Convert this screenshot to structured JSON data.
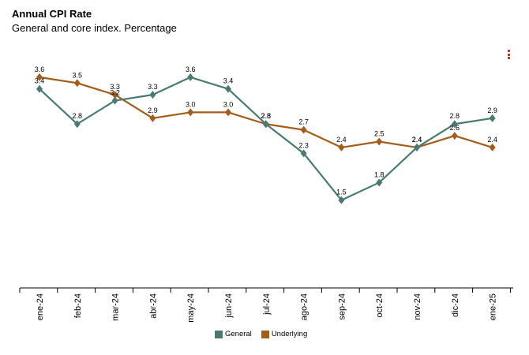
{
  "chart_title": "Annual CPI Rate",
  "chart_subtitle": "General and core index. Percentage",
  "colors": {
    "general": "#4a7a74",
    "underlying": "#a45c1a"
  },
  "icons": {
    "menu": "menu-dots-icon"
  },
  "chart_data": {
    "type": "line",
    "title": "Annual CPI Rate",
    "subtitle": "General and core index. Percentage",
    "categories": [
      "ene-24",
      "feb-24",
      "mar-24",
      "abr-24",
      "may-24",
      "jun-24",
      "jul-24",
      "ago-24",
      "sep-24",
      "oct-24",
      "nov-24",
      "dic-24",
      "ene-25"
    ],
    "series": [
      {
        "name": "General",
        "color": "#4a7a74",
        "values": [
          3.4,
          2.8,
          3.2,
          3.3,
          3.6,
          3.4,
          2.8,
          2.3,
          1.5,
          1.8,
          2.4,
          2.8,
          2.9
        ]
      },
      {
        "name": "Underlying",
        "color": "#a45c1a",
        "values": [
          3.6,
          3.5,
          3.3,
          2.9,
          3.0,
          3.0,
          2.8,
          2.7,
          2.4,
          2.5,
          2.4,
          2.6,
          2.4
        ]
      }
    ],
    "ylim": [
      0,
      3.6
    ],
    "grid": false,
    "legend_position": "bottom",
    "marker": "diamond"
  }
}
